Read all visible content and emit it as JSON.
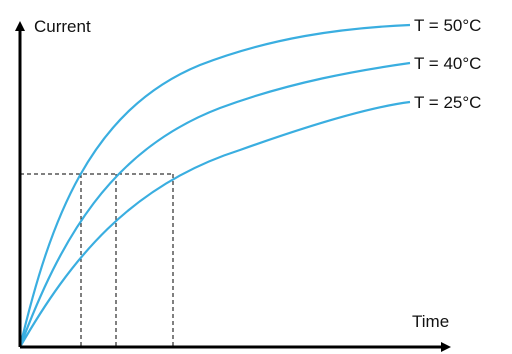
{
  "axes": {
    "y_label": "Current",
    "x_label": "Time"
  },
  "curves": [
    {
      "label": "T = 50°C",
      "color": "#3aaee0"
    },
    {
      "label": "T = 40°C",
      "color": "#3aaee0"
    },
    {
      "label": "T = 25°C",
      "color": "#3aaee0"
    }
  ],
  "colors": {
    "axis": "#000000",
    "curve": "#3aaee0",
    "guide": "#000000"
  }
}
